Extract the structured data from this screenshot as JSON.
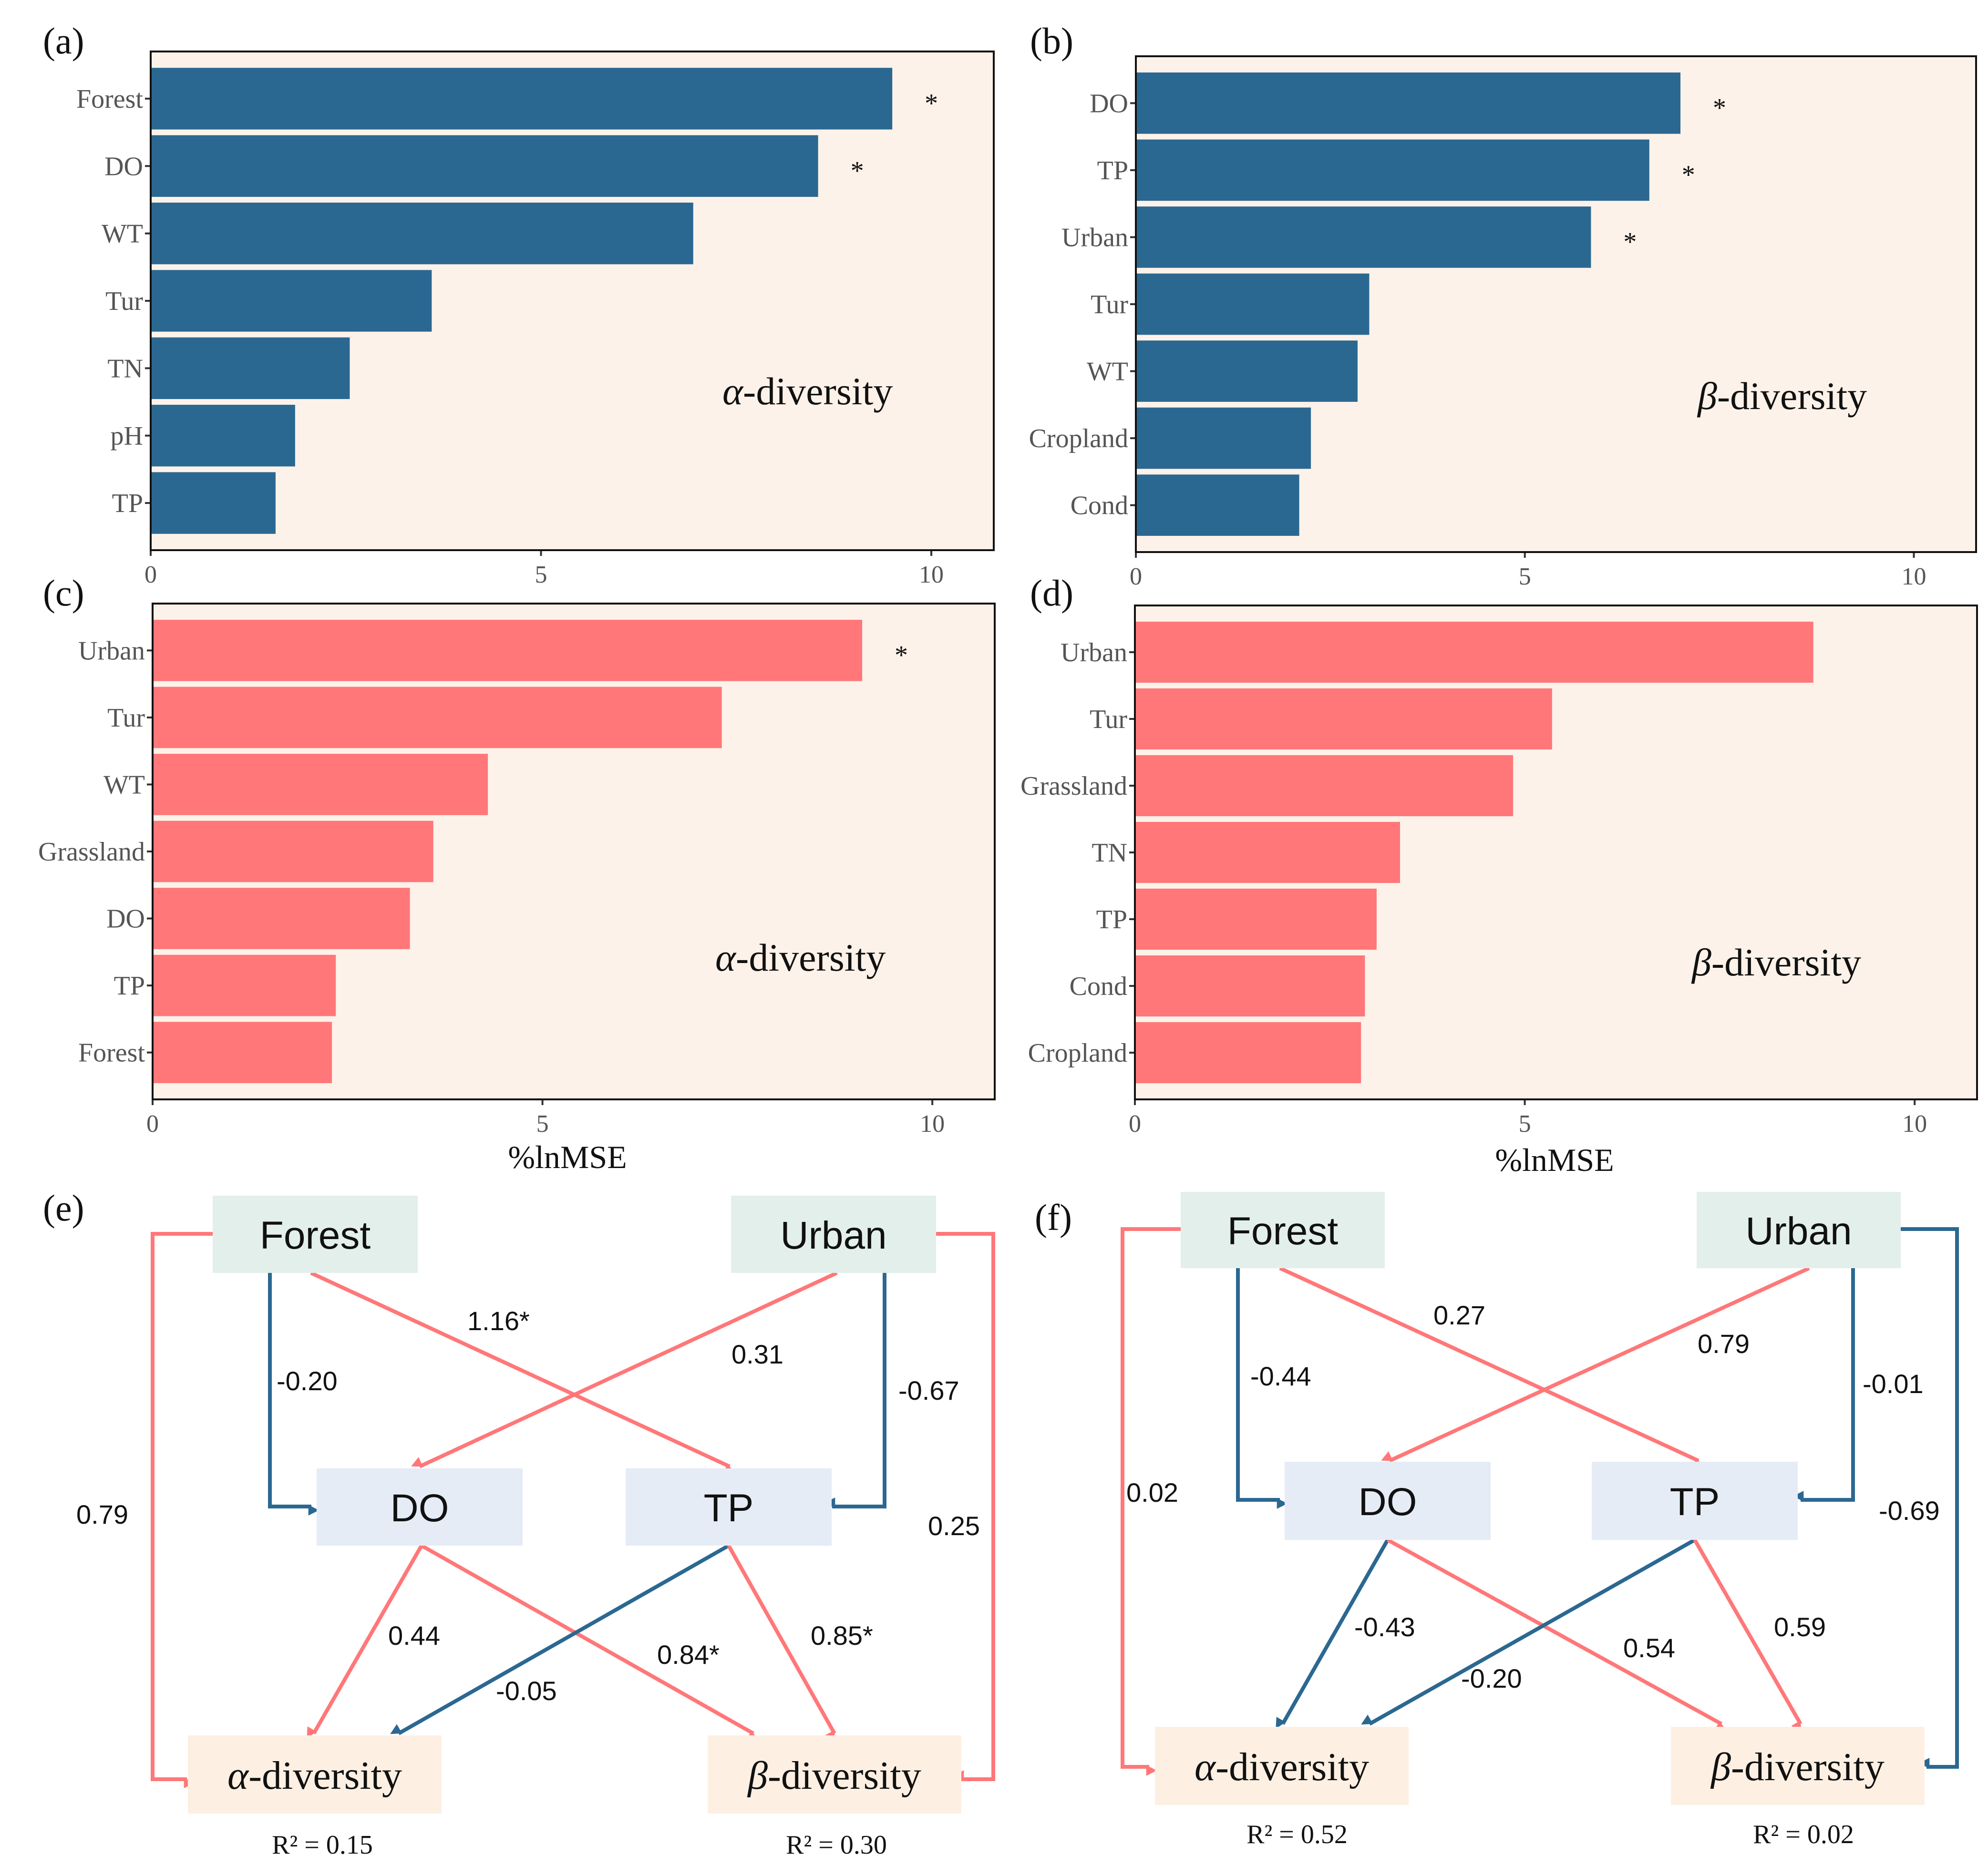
{
  "colors": {
    "panel_bg": "#fdf2e9",
    "blue": "#2b6891",
    "red": "#ff7779",
    "box_driver": "#e3efeb",
    "box_mediator": "#e5ecf6",
    "box_outcome": "#fdf0e3"
  },
  "chart_data": [
    {
      "panel": "(a)",
      "type": "bar",
      "orientation": "horizontal",
      "color": "blue",
      "categories": [
        "Forest",
        "DO",
        "WT",
        "Tur",
        "TN",
        "pH",
        "TP"
      ],
      "values": [
        9.5,
        8.55,
        6.95,
        3.6,
        2.55,
        1.85,
        1.6
      ],
      "significant": [
        true,
        true,
        false,
        false,
        false,
        false,
        false
      ],
      "inner_label_pre": "α",
      "inner_label_post": "-diversity",
      "xlim": [
        0,
        10.8
      ],
      "xticks": [
        "0",
        "5",
        "10"
      ],
      "xlabel": ""
    },
    {
      "panel": "(b)",
      "type": "bar",
      "orientation": "horizontal",
      "color": "blue",
      "categories": [
        "DO",
        "TP",
        "Urban",
        "Tur",
        "WT",
        "Cropland",
        "Cond"
      ],
      "values": [
        7.0,
        6.6,
        5.85,
        3.0,
        2.85,
        2.25,
        2.1
      ],
      "significant": [
        true,
        true,
        true,
        false,
        false,
        false,
        false
      ],
      "inner_label_pre": "β",
      "inner_label_post": "-diversity",
      "xlim": [
        0,
        10.8
      ],
      "xticks": [
        "0",
        "5",
        "10"
      ],
      "xlabel": ""
    },
    {
      "panel": "(c)",
      "type": "bar",
      "orientation": "horizontal",
      "color": "red",
      "categories": [
        "Urban",
        "Tur",
        "WT",
        "Grassland",
        "DO",
        "TP",
        "Forest"
      ],
      "values": [
        9.1,
        7.3,
        4.3,
        3.6,
        3.3,
        2.35,
        2.3
      ],
      "significant": [
        true,
        false,
        false,
        false,
        false,
        false,
        false
      ],
      "inner_label_pre": "α",
      "inner_label_post": "-diversity",
      "xlim": [
        0,
        10.8
      ],
      "xticks": [
        "0",
        "5",
        "10"
      ],
      "xlabel": "%lnMSE"
    },
    {
      "panel": "(d)",
      "type": "bar",
      "orientation": "horizontal",
      "color": "red",
      "categories": [
        "Urban",
        "Tur",
        "Grassland",
        "TN",
        "TP",
        "Cond",
        "Cropland"
      ],
      "values": [
        8.7,
        5.35,
        4.85,
        3.4,
        3.1,
        2.95,
        2.9
      ],
      "significant": [
        false,
        false,
        false,
        false,
        false,
        false,
        false
      ],
      "inner_label_pre": "β",
      "inner_label_post": "-diversity",
      "xlim": [
        0,
        10.8
      ],
      "xticks": [
        "0",
        "5",
        "10"
      ],
      "xlabel": "%lnMSE"
    }
  ],
  "path_diagrams": [
    {
      "panel": "(e)",
      "nodes": {
        "forest": "Forest",
        "urban": "Urban",
        "do": "DO",
        "tp": "TP",
        "alpha_pre": "α",
        "alpha_post": "-diversity",
        "beta_pre": "β",
        "beta_post": "-diversity"
      },
      "coefficients": {
        "forest_tp": "1.16*",
        "urban_do": "0.31",
        "forest_do": "-0.20",
        "urban_tp": "-0.67",
        "forest_alpha": "0.79",
        "urban_beta": "0.25",
        "do_alpha": "0.44",
        "do_beta": "0.84*",
        "tp_alpha": "-0.05",
        "tp_beta": "0.85*"
      },
      "r2_alpha": "R² = 0.15",
      "r2_beta": "R² = 0.30"
    },
    {
      "panel": "(f)",
      "nodes": {
        "forest": "Forest",
        "urban": "Urban",
        "do": "DO",
        "tp": "TP",
        "alpha_pre": "α",
        "alpha_post": "-diversity",
        "beta_pre": "β",
        "beta_post": "-diversity"
      },
      "coefficients": {
        "forest_tp": "0.27",
        "urban_do": "0.79",
        "forest_do": "-0.44",
        "urban_tp": "-0.01",
        "forest_alpha": "0.02",
        "urban_beta": "-0.69",
        "do_alpha": "-0.43",
        "do_beta": "0.54",
        "tp_alpha": "-0.20",
        "tp_beta": "0.59"
      },
      "r2_alpha": "R² = 0.52",
      "r2_beta": "R² = 0.02"
    }
  ]
}
